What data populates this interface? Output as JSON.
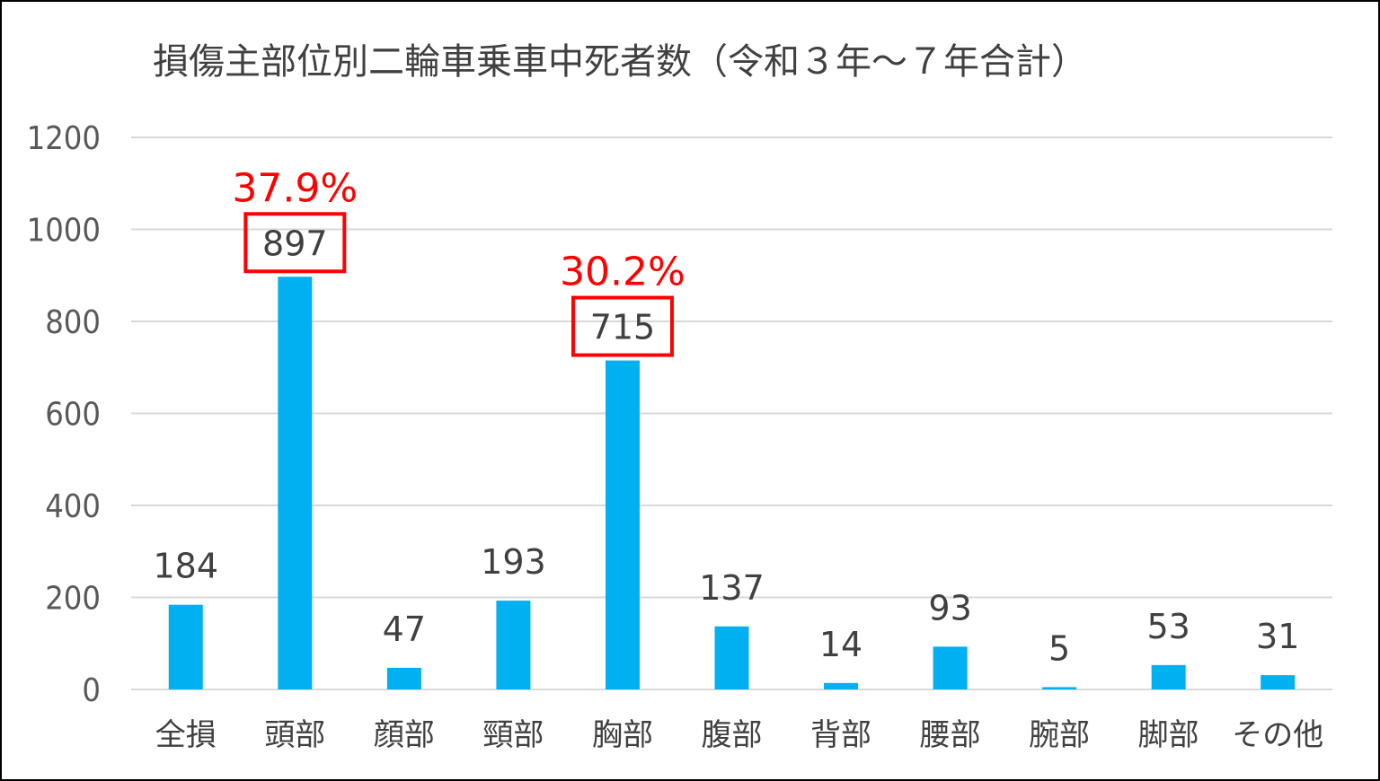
{
  "chart_data": {
    "type": "bar",
    "title": "損傷主部位別二輪車乗車中死者数（令和３年～７年合計）",
    "xlabel": "",
    "ylabel": "",
    "ylim": [
      0,
      1200
    ],
    "yticks": [
      0,
      200,
      400,
      600,
      800,
      1000,
      1200
    ],
    "grid": true,
    "legend": "none",
    "categories": [
      "全損",
      "頭部",
      "顔部",
      "頸部",
      "胸部",
      "腹部",
      "背部",
      "腰部",
      "腕部",
      "脚部",
      "その他"
    ],
    "values": [
      184,
      897,
      47,
      193,
      715,
      137,
      14,
      93,
      5,
      53,
      31
    ],
    "value_labels": [
      "184",
      "897",
      "47",
      "193",
      "715",
      "137",
      "14",
      "93",
      "5",
      "53",
      "31"
    ],
    "annotations": [
      {
        "category": "頭部",
        "text": "37.9%"
      },
      {
        "category": "胸部",
        "text": "30.2%"
      }
    ],
    "colors": {
      "bar": "#00b0f0",
      "grid": "#d9d9d9",
      "axis_text": "#595959",
      "highlight": "#ff0000"
    }
  }
}
